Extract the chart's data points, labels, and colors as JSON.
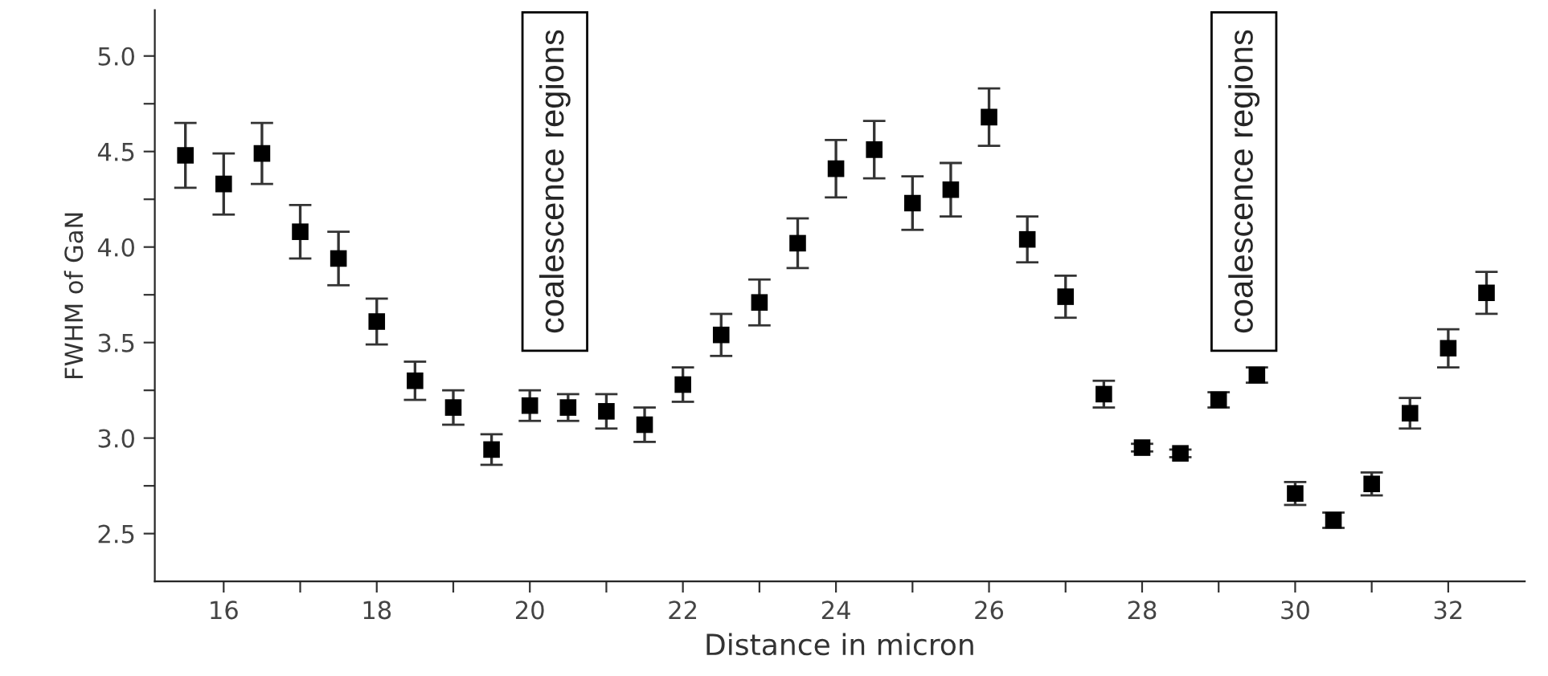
{
  "chart_data": {
    "type": "scatter",
    "xlabel": "Distance in micron",
    "ylabel": "FWHM of GaN",
    "x": [
      15.5,
      16,
      16.5,
      17,
      17.5,
      18,
      18.5,
      19,
      19.5,
      20,
      20.5,
      21,
      21.5,
      22,
      22.5,
      23,
      23.5,
      24,
      24.5,
      25,
      25.5,
      26,
      26.5,
      27,
      27.5,
      28,
      28.5,
      29,
      29.5,
      30,
      30.5,
      31,
      31.5,
      32,
      32.5
    ],
    "series": [
      {
        "color": "#000000",
        "values": [
          4.48,
          4.33,
          4.49,
          4.08,
          3.94,
          3.61,
          3.3,
          3.16,
          2.94,
          3.17,
          3.16,
          3.14,
          3.07,
          3.28,
          3.54,
          3.71,
          4.02,
          4.41,
          4.51,
          4.23,
          4.3,
          4.68,
          4.04,
          3.74,
          3.23,
          2.95,
          2.92,
          3.2,
          3.33,
          2.71,
          2.57,
          2.76,
          3.13,
          3.47,
          3.76
        ],
        "errors": [
          0.17,
          0.16,
          0.16,
          0.14,
          0.14,
          0.12,
          0.1,
          0.09,
          0.08,
          0.08,
          0.07,
          0.09,
          0.09,
          0.09,
          0.11,
          0.12,
          0.13,
          0.15,
          0.15,
          0.14,
          0.14,
          0.15,
          0.12,
          0.11,
          0.07,
          0.02,
          0.02,
          0.04,
          0.04,
          0.06,
          0.04,
          0.06,
          0.08,
          0.1,
          0.11
        ]
      }
    ],
    "marker": "square",
    "xlim": [
      15.1,
      33.0
    ],
    "ylim": [
      2.25,
      5.24
    ],
    "xticks": [
      16,
      {
        "value": 17,
        "label": null
      },
      18,
      {
        "value": 19,
        "label": null
      },
      20,
      {
        "value": 21,
        "label": null
      },
      22,
      {
        "value": 23,
        "label": null
      },
      24,
      {
        "value": 25,
        "label": null
      },
      26,
      {
        "value": 27,
        "label": null
      },
      28,
      {
        "value": 29,
        "label": null
      },
      30,
      {
        "value": 31,
        "label": null
      },
      32
    ],
    "yticks": [
      {
        "value": 2.5,
        "label": "2.5"
      },
      {
        "value": 2.75,
        "label": null
      },
      {
        "value": 3.0,
        "label": "3.0"
      },
      {
        "value": 3.25,
        "label": null
      },
      {
        "value": 3.5,
        "label": "3.5"
      },
      {
        "value": 3.75,
        "label": null
      },
      {
        "value": 4.0,
        "label": "4.0"
      },
      {
        "value": 4.25,
        "label": null
      },
      {
        "value": 4.5,
        "label": "4.5"
      },
      {
        "value": 4.75,
        "label": null
      },
      {
        "value": 5.0,
        "label": "5.0"
      }
    ],
    "grid": false,
    "legend": false,
    "annotations": [
      "coalescence regions",
      "coalescence regions"
    ]
  }
}
